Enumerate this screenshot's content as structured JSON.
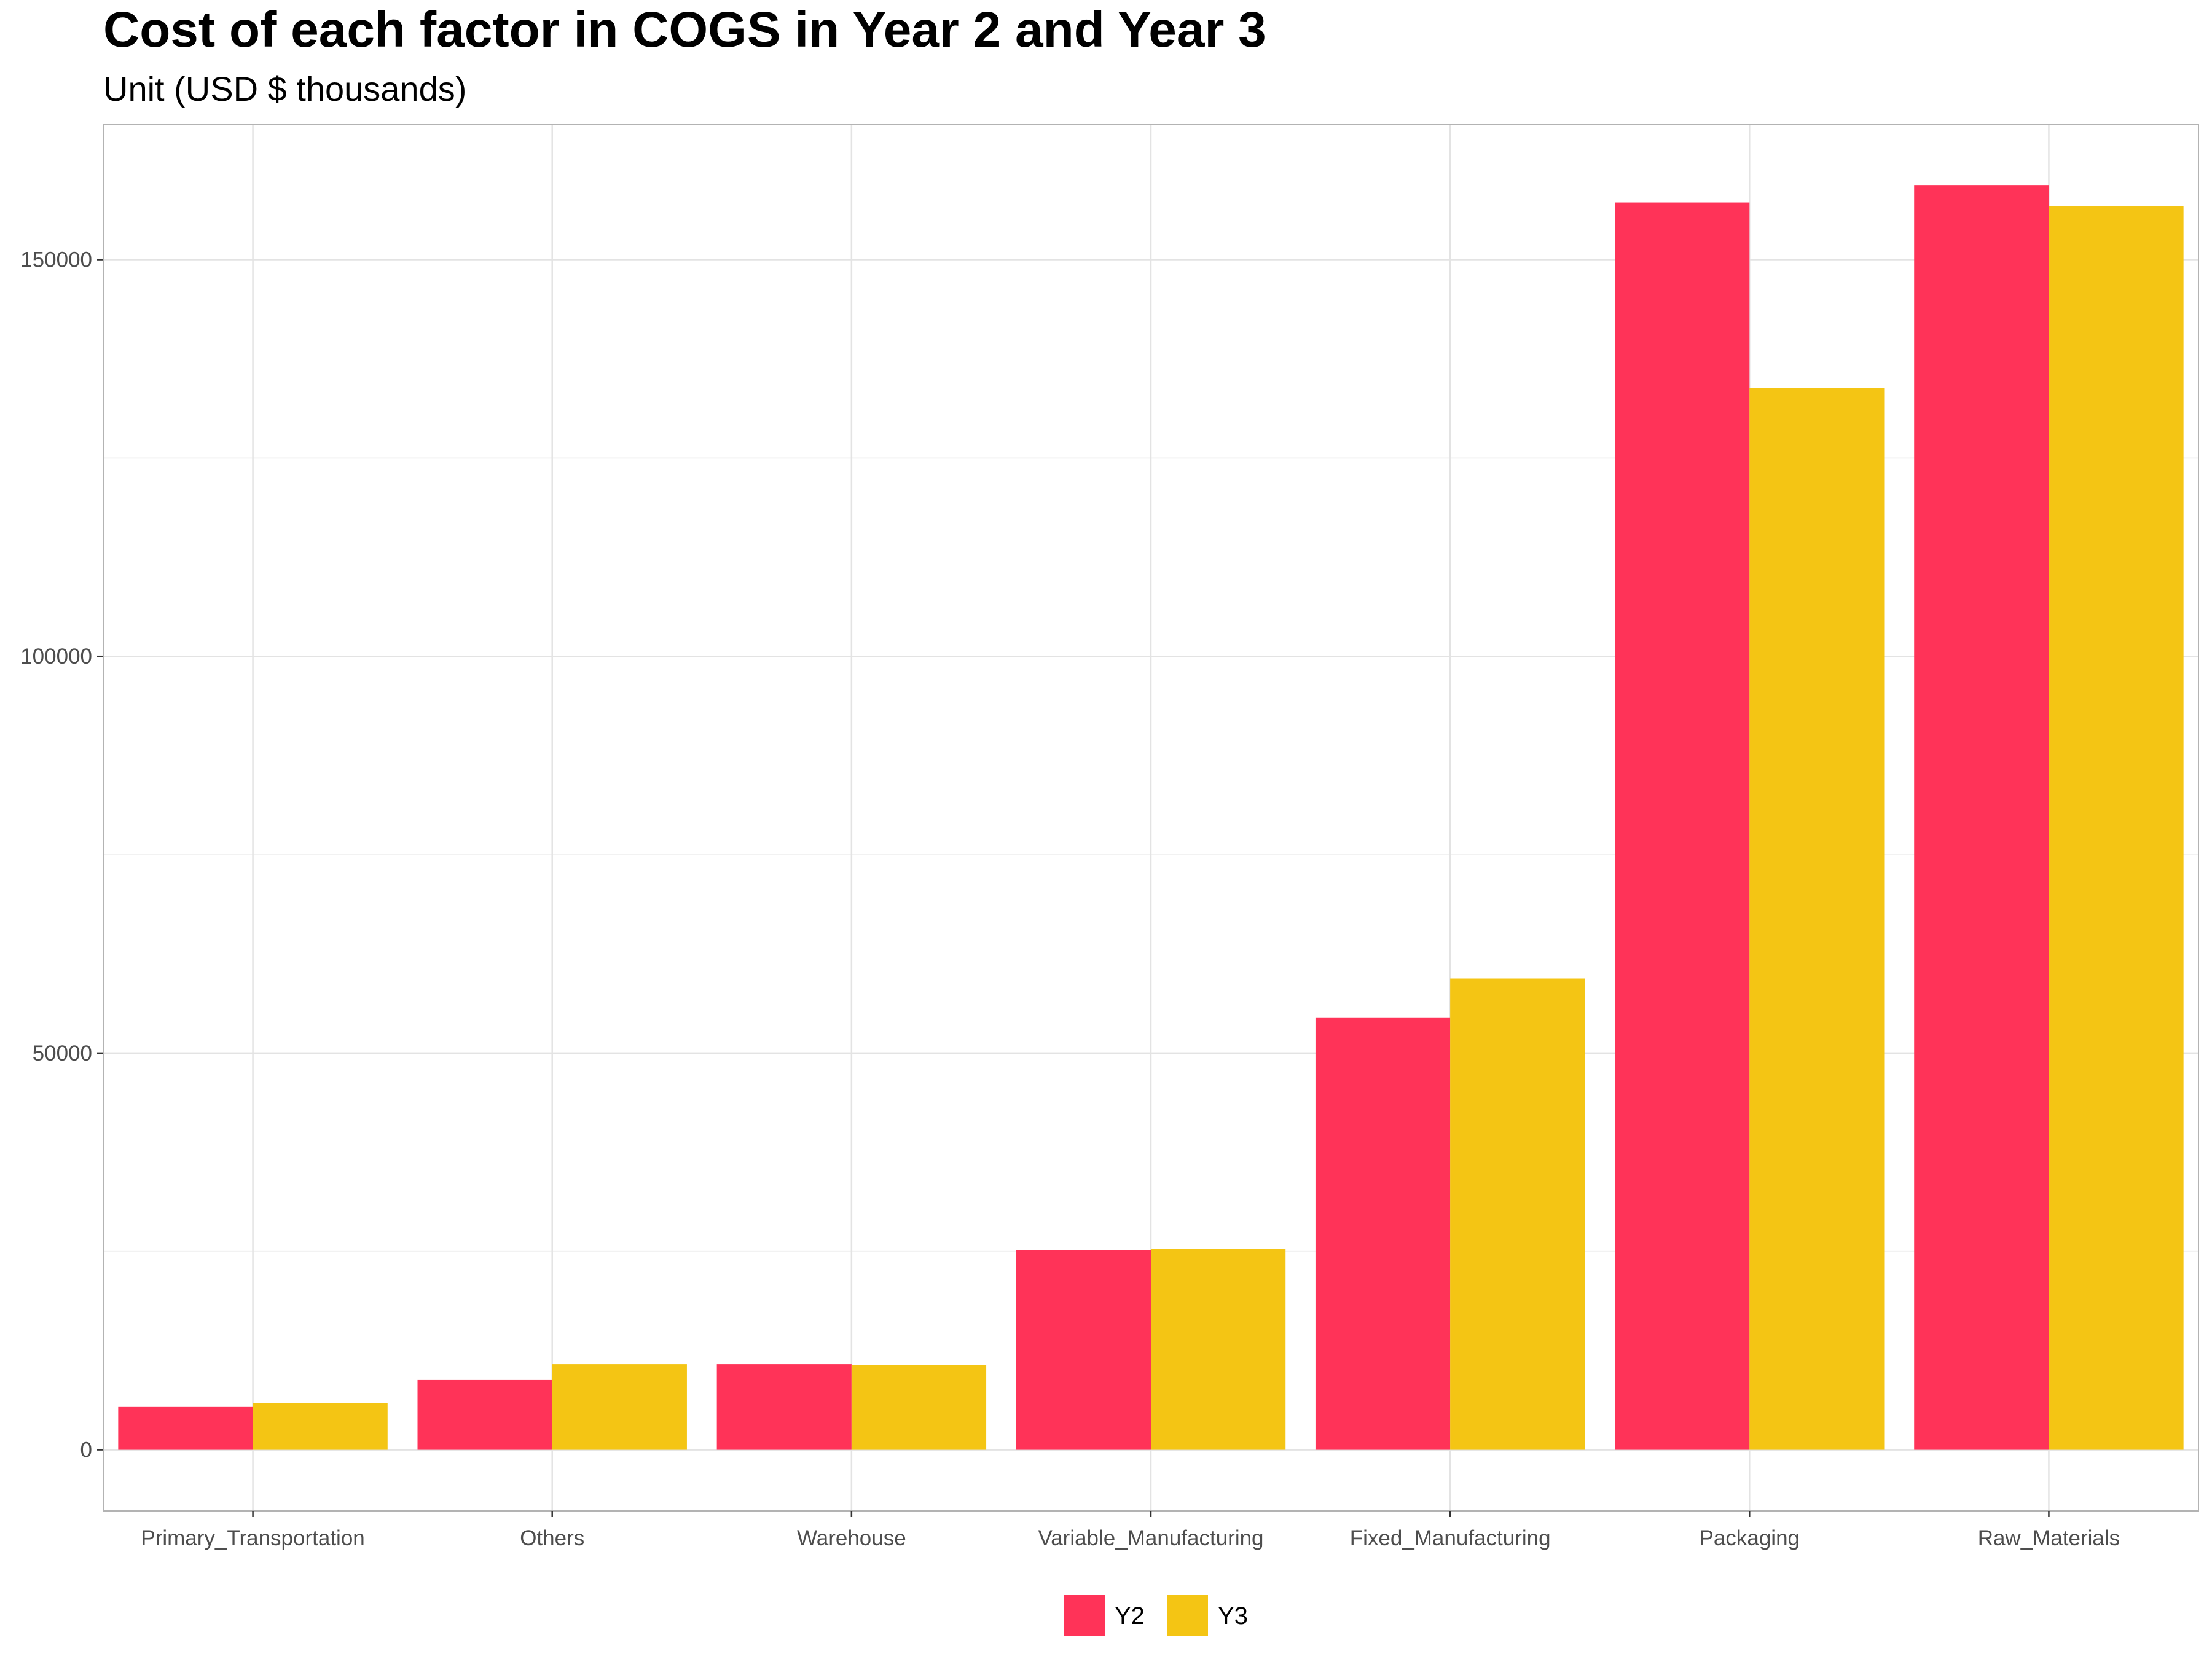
{
  "chart_data": {
    "type": "bar",
    "title": "Cost of each factor in COGS in Year 2 and Year 3",
    "subtitle": "Unit (USD $ thousands)",
    "xlabel": "",
    "ylabel": "",
    "categories": [
      "Primary_Transportation",
      "Others",
      "Warehouse",
      "Variable_Manufacturing",
      "Fixed_Manufacturing",
      "Packaging",
      "Raw_Materials"
    ],
    "series": [
      {
        "name": "Y2",
        "color": "#ff3358",
        "values": [
          5400,
          8800,
          10800,
          25200,
          54500,
          157200,
          159400
        ]
      },
      {
        "name": "Y3",
        "color": "#f4c514",
        "values": [
          5900,
          10800,
          10700,
          25300,
          59400,
          133800,
          156700
        ]
      }
    ],
    "ylim": [
      -7700,
      167000
    ],
    "yticks": [
      0,
      50000,
      100000,
      150000
    ],
    "grid": true,
    "legend_position": "bottom"
  }
}
